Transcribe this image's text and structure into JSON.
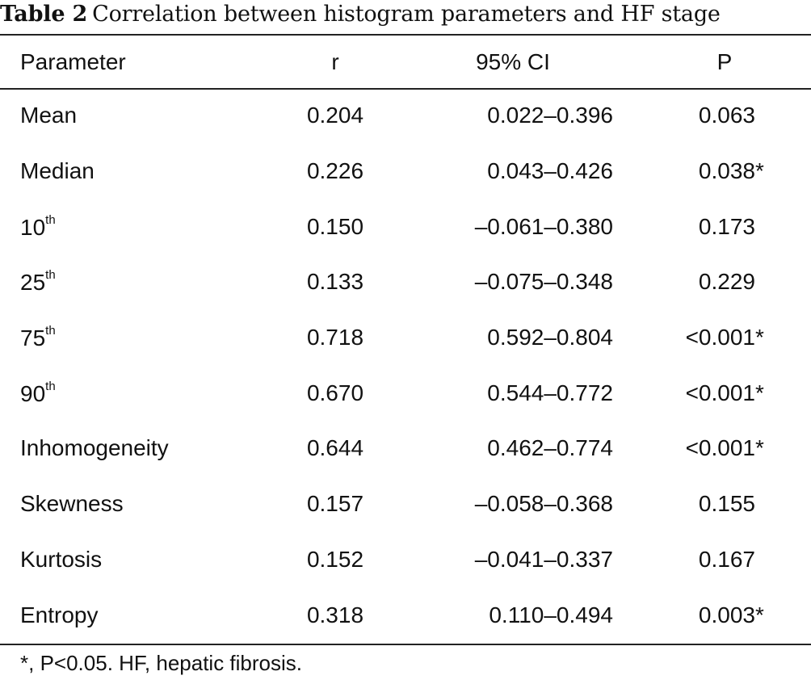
{
  "caption": {
    "label": "Table 2",
    "title": "Correlation between histogram parameters and HF stage"
  },
  "table": {
    "headers": [
      "Parameter",
      "r",
      "95% CI",
      "P"
    ],
    "rows": [
      {
        "parameter": "Mean",
        "sup": "",
        "r": "0.204",
        "ci": "0.022–0.396",
        "p": "0.063",
        "p_mark": ""
      },
      {
        "parameter": "Median",
        "sup": "",
        "r": "0.226",
        "ci": "0.043–0.426",
        "p": "0.038",
        "p_mark": "*"
      },
      {
        "parameter": "10",
        "sup": "th",
        "r": "0.150",
        "ci": "–0.061–0.380",
        "p": "0.173",
        "p_mark": ""
      },
      {
        "parameter": "25",
        "sup": "th",
        "r": "0.133",
        "ci": "–0.075–0.348",
        "p": "0.229",
        "p_mark": ""
      },
      {
        "parameter": "75",
        "sup": "th",
        "r": "0.718",
        "ci": "0.592–0.804",
        "p": "<0.001",
        "p_mark": "*"
      },
      {
        "parameter": "90",
        "sup": "th",
        "r": "0.670",
        "ci": "0.544–0.772",
        "p": "<0.001",
        "p_mark": "*"
      },
      {
        "parameter": "Inhomogeneity",
        "sup": "",
        "r": "0.644",
        "ci": "0.462–0.774",
        "p": "<0.001",
        "p_mark": "*"
      },
      {
        "parameter": "Skewness",
        "sup": "",
        "r": "0.157",
        "ci": "–0.058–0.368",
        "p": "0.155",
        "p_mark": ""
      },
      {
        "parameter": "Kurtosis",
        "sup": "",
        "r": "0.152",
        "ci": "–0.041–0.337",
        "p": "0.167",
        "p_mark": ""
      },
      {
        "parameter": "Entropy",
        "sup": "",
        "r": "0.318",
        "ci": "0.110–0.494",
        "p": "0.003",
        "p_mark": "*"
      }
    ]
  },
  "footnote": "*, P<0.05. HF, hepatic fibrosis."
}
